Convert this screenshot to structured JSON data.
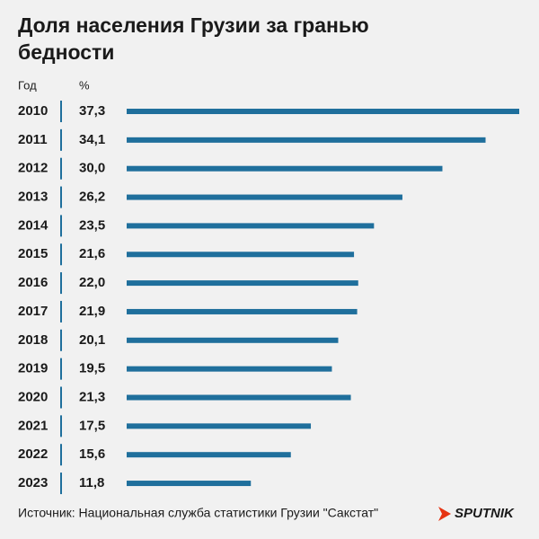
{
  "chart_data": {
    "type": "bar",
    "orientation": "horizontal",
    "title": [
      "Доля населения Грузии за гранью",
      "бедности"
    ],
    "category_header": "Год",
    "value_header": "%",
    "categories": [
      "2010",
      "2011",
      "2012",
      "2013",
      "2014",
      "2015",
      "2016",
      "2017",
      "2018",
      "2019",
      "2020",
      "2021",
      "2022",
      "2023"
    ],
    "values": [
      37.3,
      34.1,
      30.0,
      26.2,
      23.5,
      21.6,
      22.0,
      21.9,
      20.1,
      19.5,
      21.3,
      17.5,
      15.6,
      11.8
    ],
    "value_labels": [
      "37,3",
      "34,1",
      "30,0",
      "26,2",
      "23,5",
      "21,6",
      "22,0",
      "21,9",
      "20,1",
      "19,5",
      "21,3",
      "17,5",
      "15,6",
      "11,8"
    ],
    "color": "#1f6f9c",
    "source": "Источник: Национальная служба статистики Грузии \"Сакстат\"",
    "brand": "SPUTNIK"
  }
}
